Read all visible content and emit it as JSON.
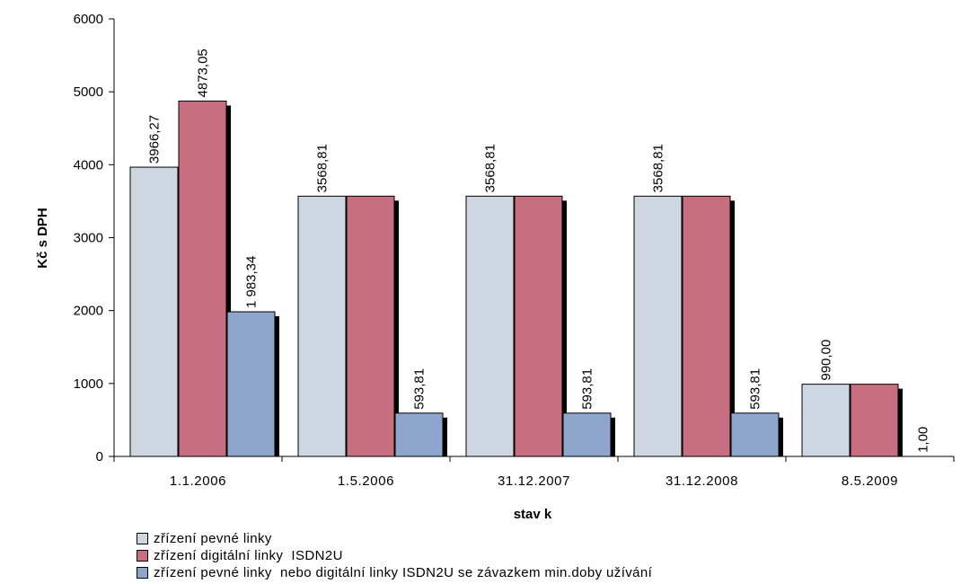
{
  "chart_data": {
    "type": "bar",
    "xlabel": "stav k",
    "ylabel": "Kč s DPH",
    "ylim": [
      0,
      6000
    ],
    "yticks": [
      0,
      1000,
      2000,
      3000,
      4000,
      5000,
      6000
    ],
    "grid": false,
    "legend_position": "bottom-left",
    "categories": [
      "1.1.2006",
      "1.5.2006",
      "31.12.2007",
      "31.12.2008",
      "8.5.2009"
    ],
    "series": [
      {
        "name": "zřízení pevné linky",
        "color": "#cdd6e1",
        "values": [
          3966.27,
          3568.81,
          3568.81,
          3568.81,
          990.0
        ],
        "labels": [
          "3966,27",
          "3568,81",
          "3568,81",
          "3568,81",
          "990,00"
        ]
      },
      {
        "name": "zřízení digitální linky  ISDN2U",
        "color": "#c76e80",
        "values": [
          4873.05,
          3568.81,
          3568.81,
          3568.81,
          990.0
        ],
        "labels": [
          "4873,05",
          "",
          "",
          "",
          ""
        ]
      },
      {
        "name": "zřízení pevné linky  nebo digitální linky ISDN2U se závazkem min.doby užívání",
        "color": "#8ea6cb",
        "values": [
          1983.34,
          593.81,
          593.81,
          593.81,
          1.0
        ],
        "labels": [
          "1 983,34",
          "593,81",
          "593,81",
          "593,81",
          "1,00"
        ]
      }
    ]
  }
}
